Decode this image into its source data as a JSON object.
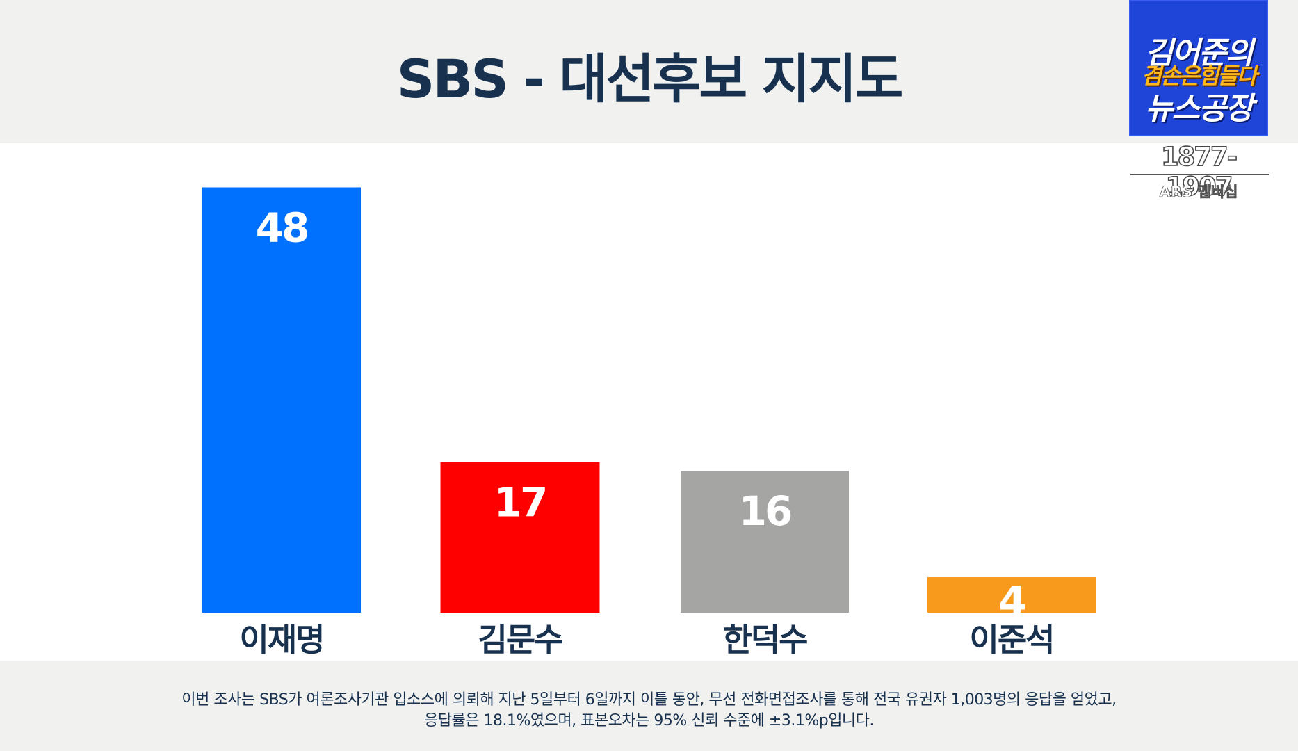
{
  "header": {
    "title": "SBS - 대선후보 지지도"
  },
  "branding": {
    "logo_line1": "김어준의",
    "logo_line2": "겸손은힘들다",
    "logo_line3": "뉴스공장",
    "phone": "1877-1907",
    "membership": "ARS 멤버십"
  },
  "chart_data": {
    "type": "bar",
    "title": "SBS - 대선후보 지지도",
    "xlabel": "",
    "ylabel": "",
    "categories": [
      "이재명",
      "김문수",
      "한덕수",
      "이준석"
    ],
    "values": [
      48,
      17,
      16,
      4
    ],
    "colors": [
      "#0070ff",
      "#ff0000",
      "#a5a6a4",
      "#f89b1c"
    ],
    "grid": false,
    "legend": "none"
  },
  "footer": {
    "line1": "이번 조사는 SBS가 여론조사기관 입소스에 의뢰해 지난 5일부터 6일까지 이틀 동안, 무선 전화면접조사를 통해 전국 유권자 1,003명의 응답을 얻었고,",
    "line2": "응답률은 18.1%였으며, 표본오차는 95% 신뢰 수준에 ±3.1%p입니다."
  },
  "colors": {
    "title": "#17314f",
    "band": "#f1f1ef",
    "logo_bg": "#1f44d8",
    "logo_accent": "#ffb81c"
  }
}
